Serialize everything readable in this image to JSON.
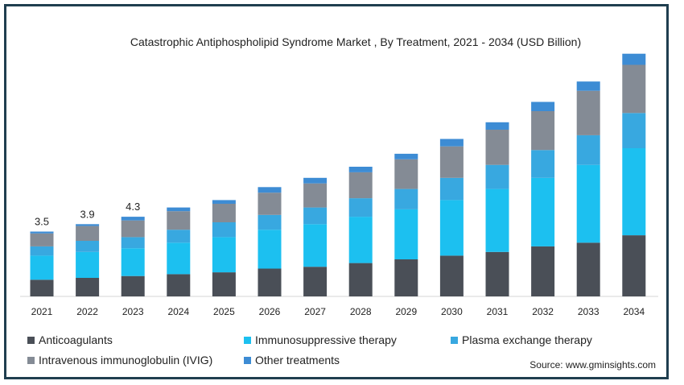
{
  "chart_data": {
    "type": "bar",
    "stacked": true,
    "title": "Catastrophic Antiphospholipid Syndrome Market , By Treatment, 2021 - 2034 (USD Billion)",
    "categories": [
      "2021",
      "2022",
      "2023",
      "2024",
      "2025",
      "2026",
      "2027",
      "2028",
      "2029",
      "2030",
      "2031",
      "2032",
      "2033",
      "2034"
    ],
    "totals_labels": [
      "3.5",
      "3.9",
      "4.3"
    ],
    "ylim": [
      0,
      13.0
    ],
    "series": [
      {
        "name": "Anticoagulants",
        "color": "#4a4f57",
        "values": [
          0.9,
          1.0,
          1.1,
          1.2,
          1.3,
          1.5,
          1.6,
          1.8,
          2.0,
          2.2,
          2.4,
          2.7,
          2.9,
          3.3
        ]
      },
      {
        "name": "Immunosuppressive therapy",
        "color": "#1cc0f0",
        "values": [
          1.3,
          1.4,
          1.5,
          1.7,
          1.9,
          2.1,
          2.3,
          2.5,
          2.7,
          3.0,
          3.4,
          3.7,
          4.2,
          4.7
        ]
      },
      {
        "name": "Plasma exchange therapy",
        "color": "#38a8e0",
        "values": [
          0.5,
          0.6,
          0.6,
          0.7,
          0.8,
          0.8,
          0.9,
          1.0,
          1.1,
          1.2,
          1.3,
          1.5,
          1.6,
          1.9
        ]
      },
      {
        "name": "Intravenous immunoglobulin (IVIG)",
        "color": "#848b95",
        "values": [
          0.7,
          0.8,
          0.9,
          1.0,
          1.0,
          1.2,
          1.3,
          1.4,
          1.6,
          1.7,
          1.9,
          2.1,
          2.4,
          2.6
        ]
      },
      {
        "name": "Other treatments",
        "color": "#3d8cd4",
        "values": [
          0.1,
          0.1,
          0.2,
          0.2,
          0.2,
          0.3,
          0.3,
          0.3,
          0.3,
          0.4,
          0.4,
          0.5,
          0.5,
          0.6
        ]
      }
    ],
    "legend_position": "bottom",
    "grid": false
  },
  "source": "Source: www.gminsights.com"
}
